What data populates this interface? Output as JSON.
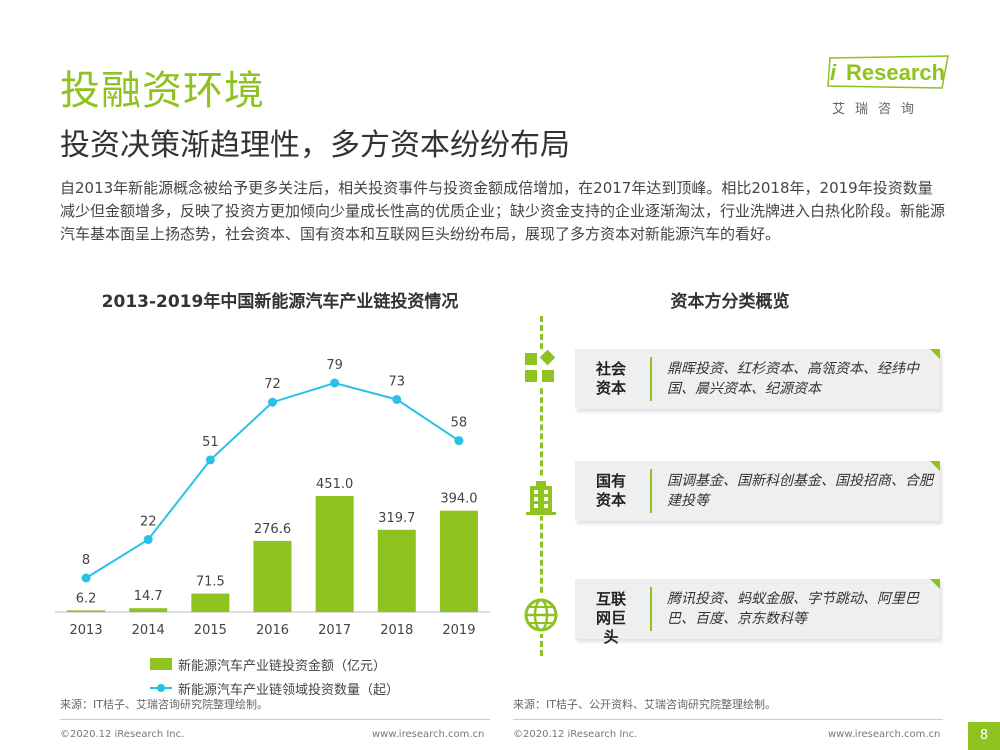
{
  "header": {
    "title": "投融资环境",
    "subtitle": "投资决策渐趋理性，多方资本纷纷布局",
    "intro": "自2013年新能源概念被给予更多关注后，相关投资事件与投资金额成倍增加，在2017年达到顶峰。相比2018年，2019年投资数量减少但金额增多，反映了投资方更加倾向少量成长性高的优质企业；缺少资金支持的企业逐渐淘汰，行业洗牌进入白热化阶段。新能源汽车基本面呈上扬态势，社会资本、国有资本和互联网巨头纷纷布局，展现了多方资本对新能源汽车的看好。"
  },
  "logo": {
    "i": "i",
    "word": "Research",
    "sub": "艾瑞咨询"
  },
  "chart_data": {
    "type": "bar",
    "title": "2013-2019年中国新能源汽车产业链投资情况",
    "categories": [
      "2013",
      "2014",
      "2015",
      "2016",
      "2017",
      "2018",
      "2019"
    ],
    "series": [
      {
        "name": "新能源汽车产业链投资金额（亿元）",
        "type": "bar",
        "values": [
          6.2,
          14.7,
          71.5,
          276.6,
          451.0,
          319.7,
          394.0
        ],
        "labels": [
          "6.2",
          "14.7",
          "71.5",
          "276.6",
          "451.0",
          "319.7",
          "394.0"
        ],
        "color": "#8dc21f"
      },
      {
        "name": "新能源汽车产业链领域投资数量（起）",
        "type": "line",
        "values": [
          8,
          22,
          51,
          72,
          79,
          73,
          58
        ],
        "labels": [
          "8",
          "22",
          "51",
          "72",
          "79",
          "73",
          "58"
        ],
        "color": "#29c1e6"
      }
    ],
    "xlabel": "",
    "ylabel": "",
    "grid": false
  },
  "capital": {
    "title": "资本方分类概览",
    "items": [
      {
        "label": "社会资本",
        "text": "鼎晖投资、红杉资本、高瓴资本、经纬中国、晨兴资本、纪源资本",
        "icon": "blocks-icon"
      },
      {
        "label": "国有资本",
        "text": "国调基金、国新科创基金、国投招商、合肥建投等",
        "icon": "building-icon"
      },
      {
        "label": "互联网巨头",
        "text": "腾讯投资、蚂蚁金服、字节跳动、阿里巴巴、百度、京东数科等",
        "icon": "globe-icon"
      }
    ]
  },
  "sources": {
    "left": "来源：IT桔子、艾瑞咨询研究院整理绘制。",
    "right": "来源：IT桔子、公开资料、艾瑞咨询研究院整理绘制。"
  },
  "footer": {
    "copyright": "©2020.12 iResearch Inc.",
    "url": "www.iresearch.com.cn",
    "page": "8"
  },
  "colors": {
    "accent": "#8dc21f",
    "line": "#29c1e6"
  }
}
